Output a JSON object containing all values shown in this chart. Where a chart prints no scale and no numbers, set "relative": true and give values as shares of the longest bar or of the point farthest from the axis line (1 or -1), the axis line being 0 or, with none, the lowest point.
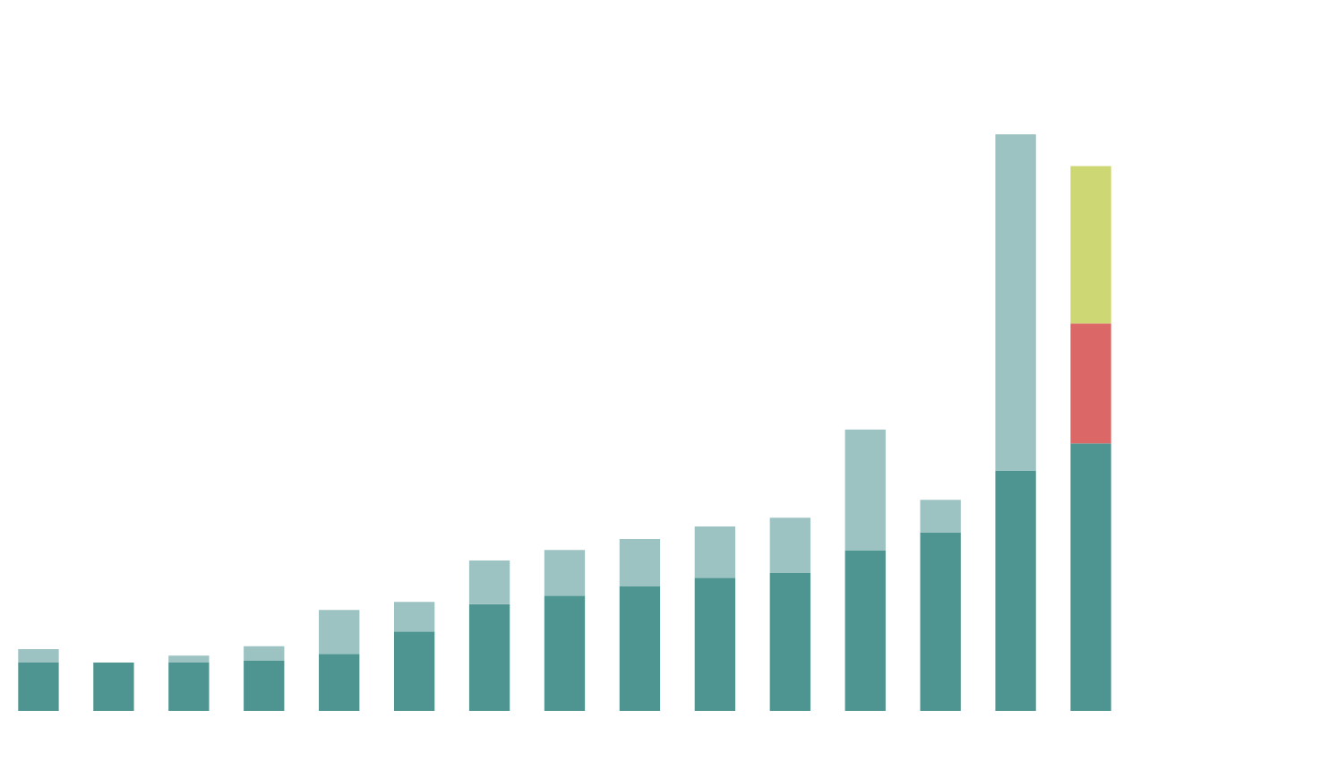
{
  "chart_data": {
    "type": "bar",
    "stacked": true,
    "relative": true,
    "categories": [
      null,
      null,
      null,
      null,
      null,
      null,
      null,
      null,
      null,
      null,
      null,
      null,
      null,
      null,
      null
    ],
    "series": [
      {
        "color": "#4e9490",
        "values": [
          0.084,
          0.084,
          0.084,
          0.087,
          0.099,
          0.138,
          0.185,
          0.2,
          0.216,
          0.231,
          0.239,
          0.278,
          0.309,
          0.416,
          0.464
        ]
      },
      {
        "color": "#9cc2c1",
        "values": [
          0.023,
          null,
          0.012,
          0.025,
          0.076,
          0.051,
          0.076,
          0.079,
          0.082,
          0.089,
          0.096,
          0.21,
          0.057,
          0.584,
          null
        ]
      },
      {
        "color": "#db6767",
        "values": [
          null,
          null,
          null,
          null,
          null,
          null,
          null,
          null,
          null,
          null,
          null,
          null,
          null,
          null,
          0.208
        ]
      },
      {
        "color": "#cdd874",
        "values": [
          null,
          null,
          null,
          null,
          null,
          null,
          null,
          null,
          null,
          null,
          null,
          null,
          null,
          null,
          0.273
        ]
      }
    ]
  }
}
